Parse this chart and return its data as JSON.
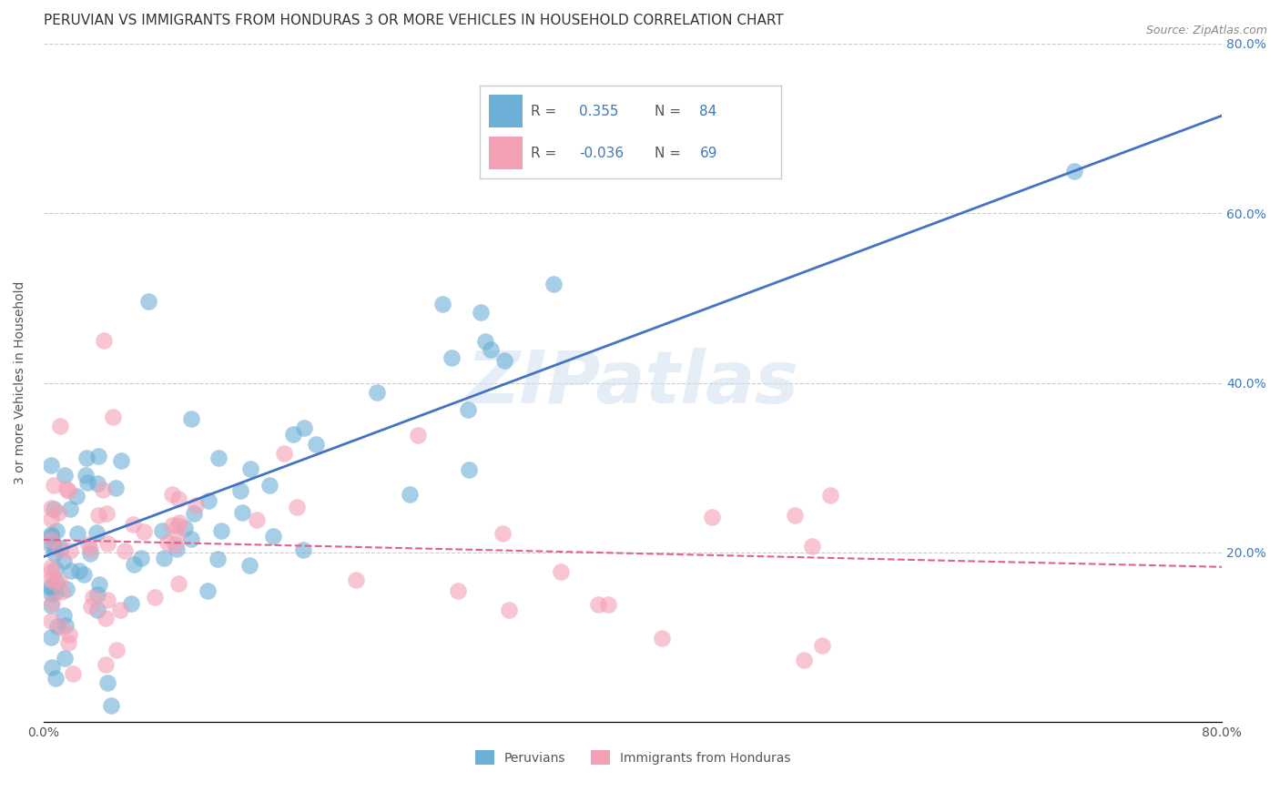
{
  "title": "PERUVIAN VS IMMIGRANTS FROM HONDURAS 3 OR MORE VEHICLES IN HOUSEHOLD CORRELATION CHART",
  "source": "Source: ZipAtlas.com",
  "ylabel": "3 or more Vehicles in Household",
  "xlim": [
    0.0,
    0.8
  ],
  "ylim": [
    0.0,
    0.8
  ],
  "blue_color": "#6baed6",
  "pink_color": "#f4a0b5",
  "blue_R": 0.355,
  "blue_N": 84,
  "pink_R": -0.036,
  "pink_N": 69,
  "legend_R_color": "#3a7abf",
  "watermark": "ZIPatlas",
  "background_color": "#ffffff",
  "grid_color": "#cccccc",
  "title_fontsize": 11,
  "axis_label_fontsize": 10,
  "tick_fontsize": 10,
  "blue_line_color": "#4472c4",
  "pink_line_color": "#e06090",
  "blue_line_slope": 0.65,
  "blue_line_intercept": 0.195,
  "pink_line_slope": -0.04,
  "pink_line_intercept": 0.215
}
